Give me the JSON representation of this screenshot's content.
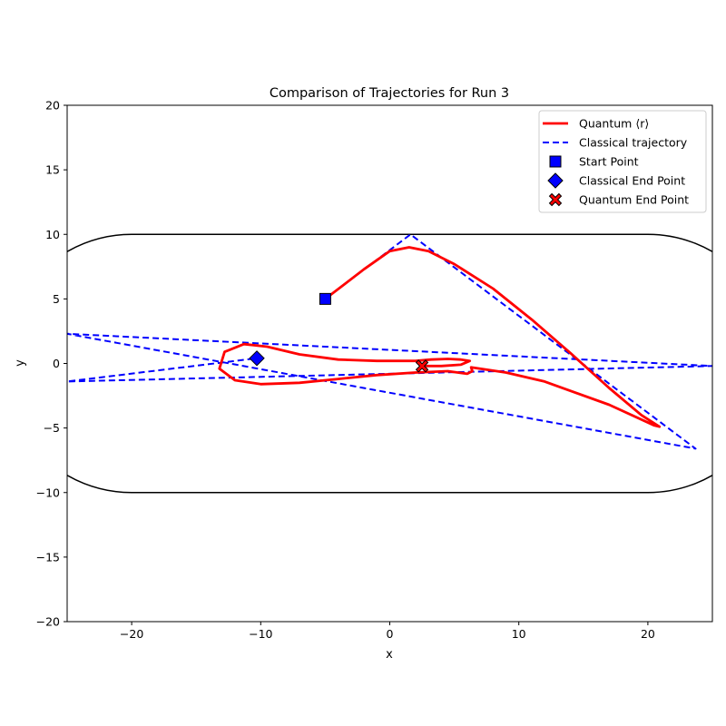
{
  "chart_data": {
    "type": "line",
    "title": "Comparison of Trajectories for Run 3",
    "xlabel": "x",
    "ylabel": "y",
    "xlim": [
      -25,
      25
    ],
    "ylim": [
      -20,
      20
    ],
    "xticks": [
      -20,
      -10,
      0,
      10,
      20
    ],
    "yticks": [
      -20,
      -15,
      -10,
      -5,
      0,
      5,
      10,
      15,
      20
    ],
    "grid": false,
    "legend_position": "top-right",
    "legend": [
      {
        "label": "Quantum ⟨r⟩",
        "kind": "line",
        "color": "#ff0000"
      },
      {
        "label": "Classical trajectory",
        "kind": "dashed",
        "color": "#0000ff"
      },
      {
        "label": "Start Point",
        "kind": "square",
        "color": "#0000ff"
      },
      {
        "label": "Classical End Point",
        "kind": "diamond",
        "color": "#0000ff"
      },
      {
        "label": "Quantum End Point",
        "kind": "x-marker",
        "color": "#ff0000"
      }
    ],
    "boundary": {
      "description": "stadium billiard",
      "straight_x": [
        -20,
        20
      ],
      "radius": 10,
      "color": "#000000"
    },
    "series": [
      {
        "name": "Classical trajectory",
        "color": "#0000ff",
        "style": "dashed",
        "x": [
          -5,
          1.6,
          23.7,
          -25,
          25,
          -25,
          -10.3
        ],
        "y": [
          5,
          10,
          -6.6,
          2.3,
          -0.2,
          -1.4,
          0.4
        ]
      },
      {
        "name": "Quantum ⟨r⟩",
        "color": "#ff0000",
        "style": "solid",
        "x": [
          -5,
          -2,
          0,
          1.5,
          3,
          5,
          8,
          11,
          14,
          17,
          19.5,
          20.9,
          20.5,
          17,
          12,
          9,
          7,
          6.3,
          6.4,
          6,
          4.5,
          2,
          -1,
          -4,
          -7,
          -10,
          -12,
          -13.2,
          -12.8,
          -11.3,
          -9.5,
          -7,
          -4,
          -1,
          2,
          3.2,
          4.5,
          5.5,
          6.2,
          5.5,
          4,
          2.5
        ],
        "y": [
          5,
          7.3,
          8.7,
          9,
          8.7,
          7.7,
          5.8,
          3.4,
          0.8,
          -1.9,
          -4,
          -4.9,
          -4.8,
          -3.2,
          -1.4,
          -0.7,
          -0.4,
          -0.3,
          -0.6,
          -0.8,
          -0.6,
          -0.7,
          -0.9,
          -1.2,
          -1.5,
          -1.6,
          -1.3,
          -0.4,
          0.9,
          1.5,
          1.3,
          0.7,
          0.3,
          0.2,
          0.2,
          0.3,
          0.35,
          0.3,
          0.2,
          -0.1,
          -0.2,
          -0.2
        ]
      }
    ],
    "markers": [
      {
        "name": "Start Point",
        "shape": "square",
        "x": -5,
        "y": 5,
        "color": "#0000ff"
      },
      {
        "name": "Classical End Point",
        "shape": "diamond",
        "x": -10.3,
        "y": 0.4,
        "color": "#0000ff"
      },
      {
        "name": "Quantum End Point",
        "shape": "x-marker",
        "x": 2.5,
        "y": -0.2,
        "color": "#ff0000"
      }
    ]
  }
}
